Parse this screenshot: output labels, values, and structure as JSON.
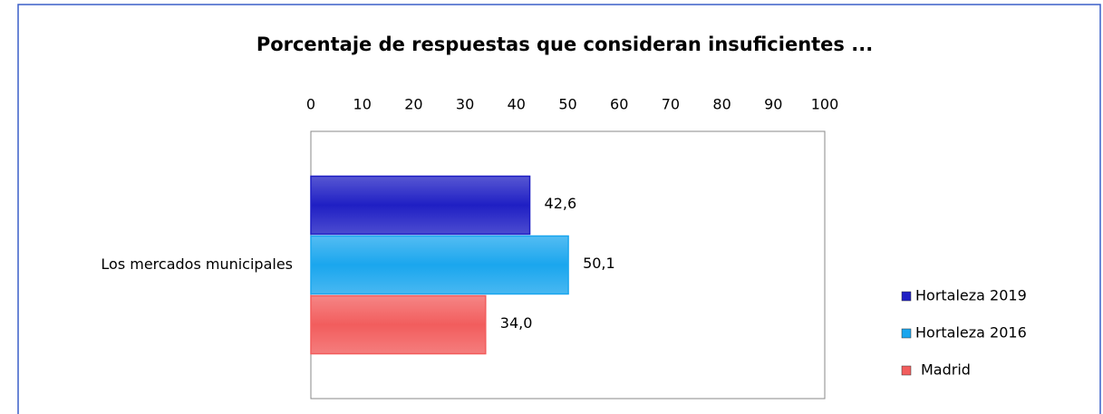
{
  "chart_data": {
    "type": "bar",
    "orientation": "horizontal",
    "title": "Porcentaje de respuestas  que consideran insuficientes ...",
    "categories": [
      "Los mercados municipales"
    ],
    "series": [
      {
        "name": "Hortaleza 2019",
        "color": "#1f1fc4",
        "values": [
          42.6
        ],
        "value_labels": [
          "42,6"
        ]
      },
      {
        "name": "Hortaleza 2016",
        "color": "#1aa6ee",
        "values": [
          50.1
        ],
        "value_labels": [
          "50,1"
        ]
      },
      {
        "name": "Madrid",
        "color": "#f25d5d",
        "values": [
          34.0
        ],
        "value_labels": [
          "34,0"
        ]
      }
    ],
    "xlim": [
      0,
      100
    ],
    "xticks": [
      0,
      10,
      20,
      30,
      40,
      50,
      60,
      70,
      80,
      90,
      100
    ],
    "grid": false,
    "legend": "right"
  }
}
